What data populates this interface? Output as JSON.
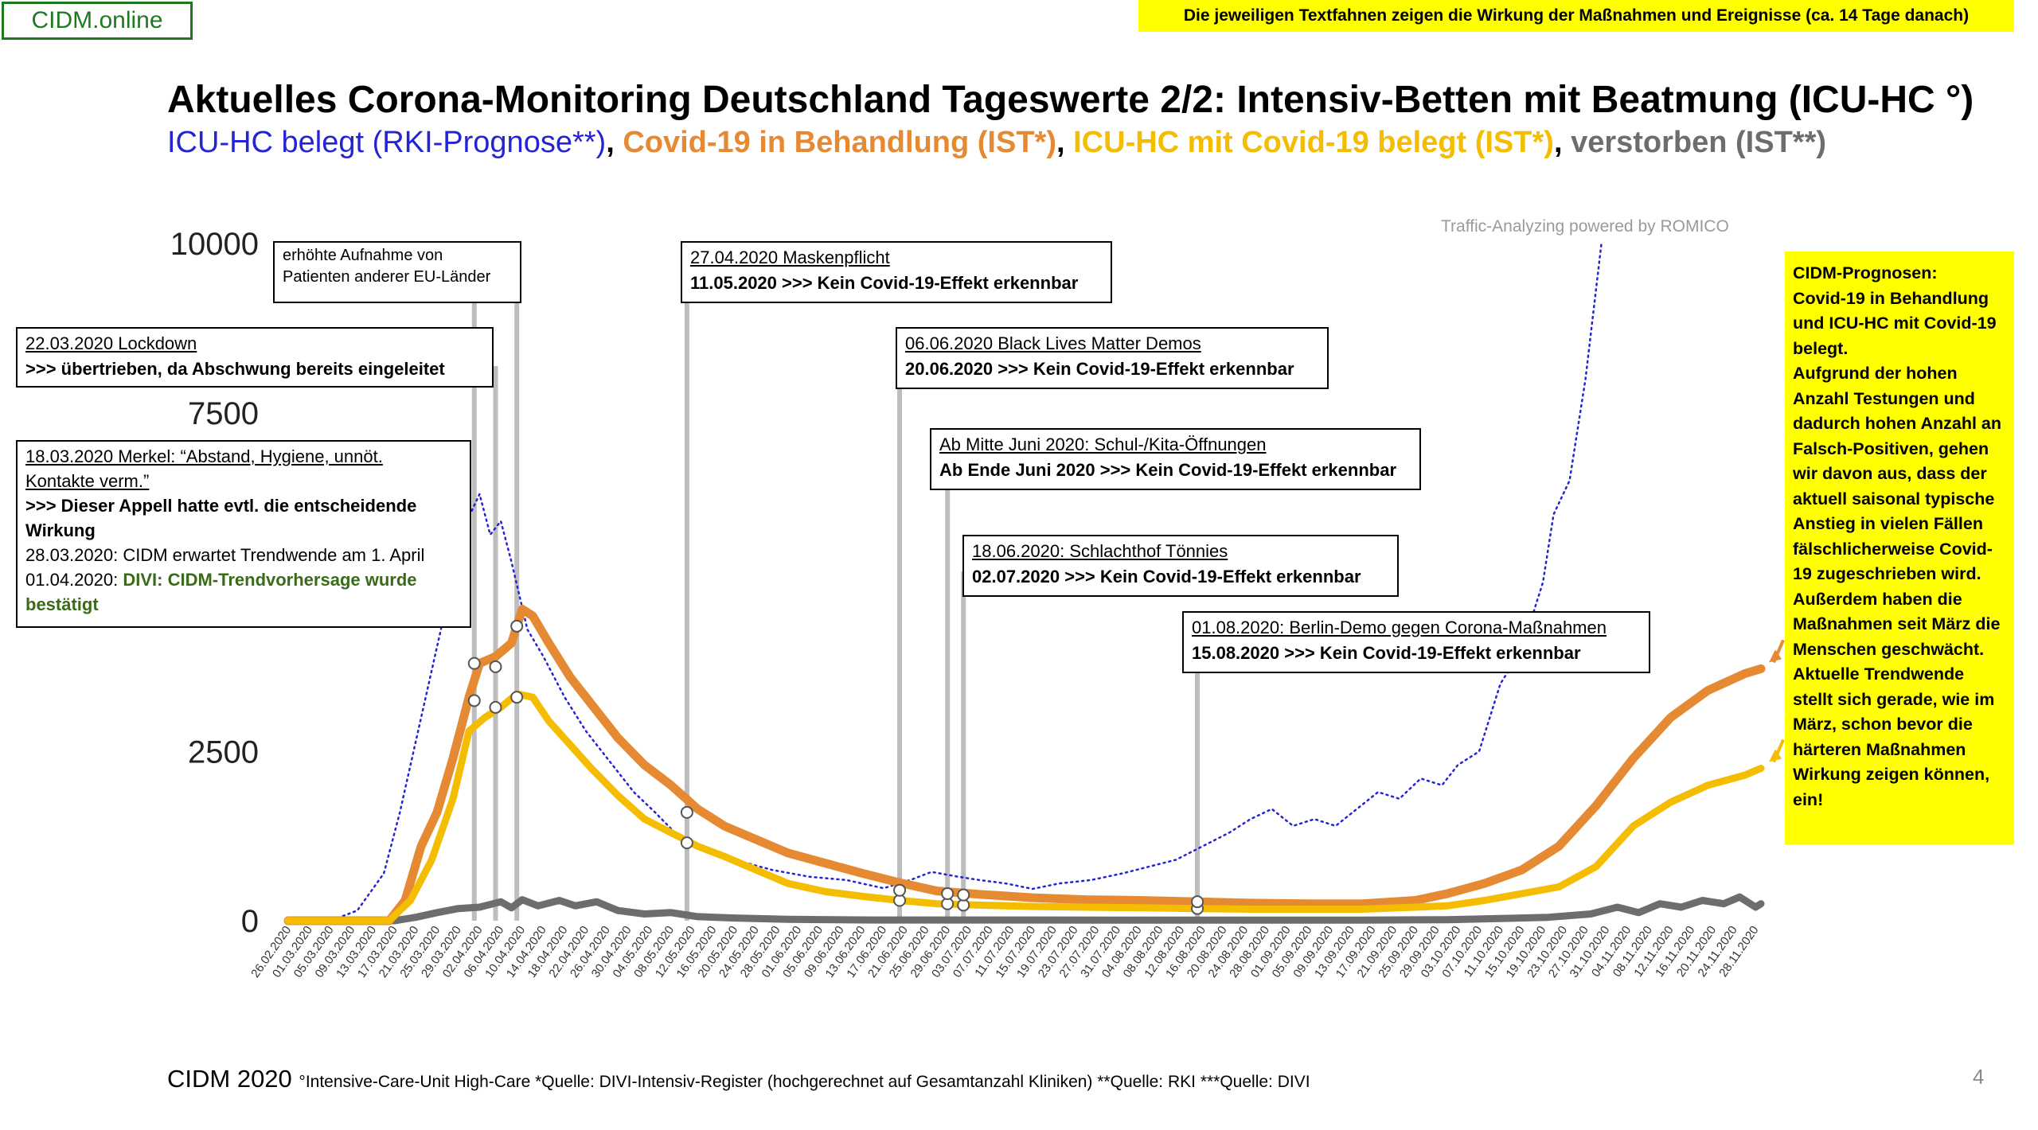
{
  "header": {
    "brand": "CIDM.online",
    "note": "Die jeweiligen Textfahnen zeigen die Wirkung der Maßnahmen und Ereignisse (ca. 14 Tage danach)",
    "title": "Aktuelles Corona-Monitoring Deutschland Tageswerte 2/2: Intensiv-Betten mit Beatmung (ICU-HC °)",
    "subtitle": {
      "blue": "ICU-HC belegt (RKI-Prognose**)",
      "comma1": ", ",
      "orange": "Covid-19 in Behandlung (IST*)",
      "comma2": ", ",
      "yellow": "ICU-HC mit Covid-19 belegt (IST*)",
      "comma3": ", ",
      "gray": "verstorben (IST**)"
    }
  },
  "watermark": "Traffic-Analyzing powered by ROMICO",
  "annotations": {
    "lockdown": {
      "line1": "22.03.2020 Lockdown",
      "line2": ">>> übertrieben, da Abschwung bereits eingeleitet"
    },
    "eu": {
      "line1": "erhöhte Aufnahme von",
      "line2": "Patienten anderer EU-Länder"
    },
    "merkel": {
      "line1": "18.03.2020 Merkel: “Abstand, Hygiene, unnöt.",
      "line2": "Kontakte verm.”",
      "line3": ">>> Dieser Appell hatte evtl. die entscheidende",
      "line4": "Wirkung",
      "line5": "28.03.2020: CIDM erwartet Trendwende am 1. April",
      "line6a": "01.04.2020: ",
      "line6b": "DIVI: CIDM-Trendvorhersage wurde",
      "line7": "bestätigt"
    },
    "maske": {
      "line1": "27.04.2020 Maskenpflicht",
      "line2": "11.05.2020 >>> Kein Covid-19-Effekt erkennbar"
    },
    "blm": {
      "line1": "06.06.2020 Black Lives Matter Demos",
      "line2": "20.06.2020 >>> Kein Covid-19-Effekt erkennbar"
    },
    "schule": {
      "line1": "Ab Mitte Juni 2020: Schul-/Kita-Öffnungen",
      "line2": "Ab Ende Juni 2020 >>> Kein Covid-19-Effekt erkennbar"
    },
    "toennies": {
      "line1": "18.06.2020: Schlachthof Tönnies",
      "line2": "02.07.2020 >>> Kein Covid-19-Effekt erkennbar"
    },
    "berlin": {
      "line1": "01.08.2020: Berlin-Demo gegen Corona-Maßnahmen",
      "line2": "15.08.2020 >>> Kein Covid-19-Effekt erkennbar"
    }
  },
  "cidm_box": "CIDM-Prognosen:\nCovid-19 in Behandlung und ICU-HC mit Covid-19 belegt.\nAufgrund der hohen Anzahl Testungen und dadurch hohen Anzahl an Falsch-Positiven, gehen wir davon aus, dass der aktuell saisonal typische Anstieg in vielen Fällen fälschlicherweise Covid-19 zugeschrieben wird. Außerdem haben die Maßnahmen seit März die Menschen geschwächt.\nAktuelle Trendwende stellt sich gerade, wie im März, schon bevor die härteren Maßnahmen Wirkung zeigen können, ein!",
  "footer": {
    "main": "CIDM 2020",
    "note": "°Intensive-Care-Unit High-Care  *Quelle: DIVI-Intensiv-Register (hochgerechnet auf Gesamtanzahl Kliniken)  **Quelle: RKI  ***Quelle: DIVI",
    "page": "4"
  },
  "colors": {
    "blue": "#2424d4",
    "orange": "#e58a33",
    "yellow": "#f5bd02",
    "gray": "#6d6d6d",
    "event_line": "#bdbdbd"
  },
  "chart_data": {
    "type": "line",
    "ylim": [
      0,
      10000
    ],
    "yticks": [
      0,
      2500,
      7500,
      10000
    ],
    "x_dates": [
      "2020-02-26",
      "2020-11-29"
    ],
    "x_ticks": [
      "26.02.2020",
      "01.03.2020",
      "05.03.2020",
      "09.03.2020",
      "13.03.2020",
      "17.03.2020",
      "21.03.2020",
      "25.03.2020",
      "29.03.2020",
      "02.04.2020",
      "06.04.2020",
      "10.04.2020",
      "14.04.2020",
      "18.04.2020",
      "22.04.2020",
      "26.04.2020",
      "30.04.2020",
      "04.05.2020",
      "08.05.2020",
      "12.05.2020",
      "16.05.2020",
      "20.05.2020",
      "24.05.2020",
      "28.05.2020",
      "01.06.2020",
      "05.06.2020",
      "09.06.2020",
      "13.06.2020",
      "17.06.2020",
      "21.06.2020",
      "25.06.2020",
      "29.06.2020",
      "03.07.2020",
      "07.07.2020",
      "11.07.2020",
      "15.07.2020",
      "19.07.2020",
      "23.07.2020",
      "27.07.2020",
      "31.07.2020",
      "04.08.2020",
      "08.08.2020",
      "12.08.2020",
      "16.08.2020",
      "20.08.2020",
      "24.08.2020",
      "28.08.2020",
      "01.09.2020",
      "05.09.2020",
      "09.09.2020",
      "13.09.2020",
      "17.09.2020",
      "21.09.2020",
      "25.09.2020",
      "29.09.2020",
      "03.10.2020",
      "07.10.2020",
      "11.10.2020",
      "15.10.2020",
      "19.10.2020",
      "23.10.2020",
      "27.10.2020",
      "31.10.2020",
      "04.11.2020",
      "08.11.2020",
      "12.11.2020",
      "16.11.2020",
      "20.11.2020",
      "24.11.2020",
      "28.11.2020"
    ],
    "series": [
      {
        "name": "ICU-HC belegt (RKI-Prognose**)",
        "color": "#2424d4",
        "style": "dotted",
        "points": [
          [
            "2020-02-26",
            0
          ],
          [
            "2020-03-05",
            0
          ],
          [
            "2020-03-10",
            150
          ],
          [
            "2020-03-15",
            700
          ],
          [
            "2020-03-18",
            1600
          ],
          [
            "2020-03-22",
            3000
          ],
          [
            "2020-03-26",
            4400
          ],
          [
            "2020-03-30",
            5800
          ],
          [
            "2020-04-02",
            6300
          ],
          [
            "2020-04-04",
            5700
          ],
          [
            "2020-04-06",
            5900
          ],
          [
            "2020-04-08",
            5300
          ],
          [
            "2020-04-11",
            4300
          ],
          [
            "2020-04-14",
            3900
          ],
          [
            "2020-04-18",
            3300
          ],
          [
            "2020-04-22",
            2800
          ],
          [
            "2020-04-26",
            2400
          ],
          [
            "2020-05-01",
            1900
          ],
          [
            "2020-05-05",
            1600
          ],
          [
            "2020-05-10",
            1200
          ],
          [
            "2020-05-15",
            1000
          ],
          [
            "2020-05-20",
            900
          ],
          [
            "2020-05-27",
            750
          ],
          [
            "2020-06-03",
            650
          ],
          [
            "2020-06-10",
            600
          ],
          [
            "2020-06-17",
            480
          ],
          [
            "2020-06-22",
            600
          ],
          [
            "2020-06-26",
            720
          ],
          [
            "2020-07-01",
            650
          ],
          [
            "2020-07-05",
            600
          ],
          [
            "2020-07-10",
            550
          ],
          [
            "2020-07-15",
            470
          ],
          [
            "2020-07-20",
            550
          ],
          [
            "2020-07-26",
            600
          ],
          [
            "2020-08-01",
            700
          ],
          [
            "2020-08-06",
            800
          ],
          [
            "2020-08-11",
            900
          ],
          [
            "2020-08-16",
            1100
          ],
          [
            "2020-08-21",
            1300
          ],
          [
            "2020-08-25",
            1500
          ],
          [
            "2020-08-29",
            1650
          ],
          [
            "2020-09-02",
            1400
          ],
          [
            "2020-09-06",
            1500
          ],
          [
            "2020-09-10",
            1400
          ],
          [
            "2020-09-14",
            1650
          ],
          [
            "2020-09-18",
            1900
          ],
          [
            "2020-09-22",
            1800
          ],
          [
            "2020-09-26",
            2100
          ],
          [
            "2020-09-30",
            2000
          ],
          [
            "2020-10-03",
            2300
          ],
          [
            "2020-10-07",
            2500
          ],
          [
            "2020-10-11",
            3500
          ],
          [
            "2020-10-15",
            4000
          ],
          [
            "2020-10-19",
            5000
          ],
          [
            "2020-10-21",
            6000
          ],
          [
            "2020-10-24",
            6500
          ],
          [
            "2020-10-27",
            8000
          ],
          [
            "2020-10-30",
            10000
          ]
        ]
      },
      {
        "name": "Covid-19 in Behandlung (IST*)",
        "color": "#e58a33",
        "style": "solid",
        "points": [
          [
            "2020-02-26",
            0
          ],
          [
            "2020-03-16",
            0
          ],
          [
            "2020-03-19",
            300
          ],
          [
            "2020-03-22",
            1100
          ],
          [
            "2020-03-25",
            1600
          ],
          [
            "2020-03-28",
            2400
          ],
          [
            "2020-03-31",
            3300
          ],
          [
            "2020-04-02",
            3800
          ],
          [
            "2020-04-05",
            3900
          ],
          [
            "2020-04-08",
            4100
          ],
          [
            "2020-04-10",
            4600
          ],
          [
            "2020-04-12",
            4500
          ],
          [
            "2020-04-15",
            4100
          ],
          [
            "2020-04-19",
            3600
          ],
          [
            "2020-04-23",
            3200
          ],
          [
            "2020-04-28",
            2700
          ],
          [
            "2020-05-03",
            2300
          ],
          [
            "2020-05-08",
            2000
          ],
          [
            "2020-05-13",
            1650
          ],
          [
            "2020-05-18",
            1400
          ],
          [
            "2020-05-24",
            1200
          ],
          [
            "2020-05-30",
            1000
          ],
          [
            "2020-06-06",
            850
          ],
          [
            "2020-06-13",
            700
          ],
          [
            "2020-06-20",
            560
          ],
          [
            "2020-06-27",
            440
          ],
          [
            "2020-07-05",
            390
          ],
          [
            "2020-07-15",
            340
          ],
          [
            "2020-07-25",
            310
          ],
          [
            "2020-08-04",
            300
          ],
          [
            "2020-08-15",
            280
          ],
          [
            "2020-08-25",
            260
          ],
          [
            "2020-09-05",
            250
          ],
          [
            "2020-09-15",
            250
          ],
          [
            "2020-09-25",
            300
          ],
          [
            "2020-10-01",
            400
          ],
          [
            "2020-10-08",
            550
          ],
          [
            "2020-10-15",
            750
          ],
          [
            "2020-10-22",
            1100
          ],
          [
            "2020-10-29",
            1700
          ],
          [
            "2020-11-05",
            2400
          ],
          [
            "2020-11-12",
            3000
          ],
          [
            "2020-11-19",
            3400
          ],
          [
            "2020-11-26",
            3650
          ],
          [
            "2020-11-29",
            3720
          ]
        ]
      },
      {
        "name": "ICU-HC mit Covid-19 belegt (IST*)",
        "color": "#f5bd02",
        "style": "solid",
        "points": [
          [
            "2020-02-26",
            0
          ],
          [
            "2020-03-16",
            0
          ],
          [
            "2020-03-20",
            300
          ],
          [
            "2020-03-24",
            900
          ],
          [
            "2020-03-28",
            1800
          ],
          [
            "2020-03-31",
            2800
          ],
          [
            "2020-04-03",
            3000
          ],
          [
            "2020-04-06",
            3150
          ],
          [
            "2020-04-09",
            3350
          ],
          [
            "2020-04-12",
            3300
          ],
          [
            "2020-04-15",
            2950
          ],
          [
            "2020-04-19",
            2600
          ],
          [
            "2020-04-23",
            2250
          ],
          [
            "2020-04-28",
            1850
          ],
          [
            "2020-05-03",
            1500
          ],
          [
            "2020-05-08",
            1300
          ],
          [
            "2020-05-13",
            1100
          ],
          [
            "2020-05-18",
            950
          ],
          [
            "2020-05-24",
            750
          ],
          [
            "2020-05-30",
            550
          ],
          [
            "2020-06-06",
            430
          ],
          [
            "2020-06-13",
            360
          ],
          [
            "2020-06-20",
            300
          ],
          [
            "2020-06-27",
            250
          ],
          [
            "2020-07-05",
            230
          ],
          [
            "2020-07-15",
            210
          ],
          [
            "2020-07-25",
            200
          ],
          [
            "2020-08-04",
            190
          ],
          [
            "2020-08-15",
            180
          ],
          [
            "2020-08-25",
            170
          ],
          [
            "2020-09-05",
            170
          ],
          [
            "2020-09-15",
            170
          ],
          [
            "2020-09-25",
            200
          ],
          [
            "2020-10-01",
            220
          ],
          [
            "2020-10-08",
            300
          ],
          [
            "2020-10-15",
            400
          ],
          [
            "2020-10-22",
            500
          ],
          [
            "2020-10-29",
            800
          ],
          [
            "2020-11-05",
            1400
          ],
          [
            "2020-11-12",
            1750
          ],
          [
            "2020-11-19",
            2000
          ],
          [
            "2020-11-26",
            2150
          ],
          [
            "2020-11-29",
            2250
          ]
        ]
      },
      {
        "name": "verstorben (IST**)",
        "color": "#6d6d6d",
        "style": "solid",
        "points": [
          [
            "2020-02-26",
            0
          ],
          [
            "2020-03-17",
            0
          ],
          [
            "2020-03-21",
            50
          ],
          [
            "2020-03-25",
            120
          ],
          [
            "2020-03-29",
            180
          ],
          [
            "2020-04-02",
            200
          ],
          [
            "2020-04-06",
            280
          ],
          [
            "2020-04-08",
            190
          ],
          [
            "2020-04-10",
            310
          ],
          [
            "2020-04-13",
            220
          ],
          [
            "2020-04-17",
            300
          ],
          [
            "2020-04-20",
            220
          ],
          [
            "2020-04-24",
            280
          ],
          [
            "2020-04-28",
            150
          ],
          [
            "2020-05-03",
            100
          ],
          [
            "2020-05-08",
            120
          ],
          [
            "2020-05-13",
            60
          ],
          [
            "2020-05-20",
            40
          ],
          [
            "2020-05-30",
            20
          ],
          [
            "2020-06-15",
            10
          ],
          [
            "2020-07-15",
            10
          ],
          [
            "2020-08-15",
            8
          ],
          [
            "2020-09-15",
            8
          ],
          [
            "2020-10-01",
            15
          ],
          [
            "2020-10-10",
            30
          ],
          [
            "2020-10-20",
            50
          ],
          [
            "2020-10-28",
            100
          ],
          [
            "2020-11-02",
            200
          ],
          [
            "2020-11-06",
            120
          ],
          [
            "2020-11-10",
            250
          ],
          [
            "2020-11-14",
            200
          ],
          [
            "2020-11-18",
            300
          ],
          [
            "2020-11-22",
            250
          ],
          [
            "2020-11-25",
            350
          ],
          [
            "2020-11-28",
            200
          ],
          [
            "2020-11-29",
            250
          ]
        ]
      }
    ],
    "event_markers": [
      {
        "label": "22.03.2020 Lockdown",
        "date": "2020-04-05",
        "values": [
          3150,
          3750
        ]
      },
      {
        "label": "18.03.2020 Merkel",
        "date": "2020-04-01",
        "values": [
          3250,
          3800
        ]
      },
      {
        "label": "erhöhte Aufnahme von Patienten anderer EU-Länder",
        "date": "2020-04-09",
        "values": [
          3300,
          4350
        ]
      },
      {
        "label": "27.04.2020 Maskenpflicht",
        "date": "2020-05-11",
        "values": [
          1150,
          1600
        ]
      },
      {
        "label": "06.06.2020 Black Lives Matter Demos",
        "date": "2020-06-20",
        "values": [
          300,
          450
        ]
      },
      {
        "label": "Ab Mitte Juni 2020: Schul-/Kita-Öffnungen",
        "date": "2020-06-29",
        "values": [
          250,
          400
        ]
      },
      {
        "label": "18.06.2020: Schlachthof Tönnies",
        "date": "2020-07-02",
        "values": [
          230,
          380
        ]
      },
      {
        "label": "01.08.2020: Berlin-Demo gegen Corona-Maßnahmen",
        "date": "2020-08-15",
        "values": [
          180,
          280
        ]
      }
    ]
  }
}
